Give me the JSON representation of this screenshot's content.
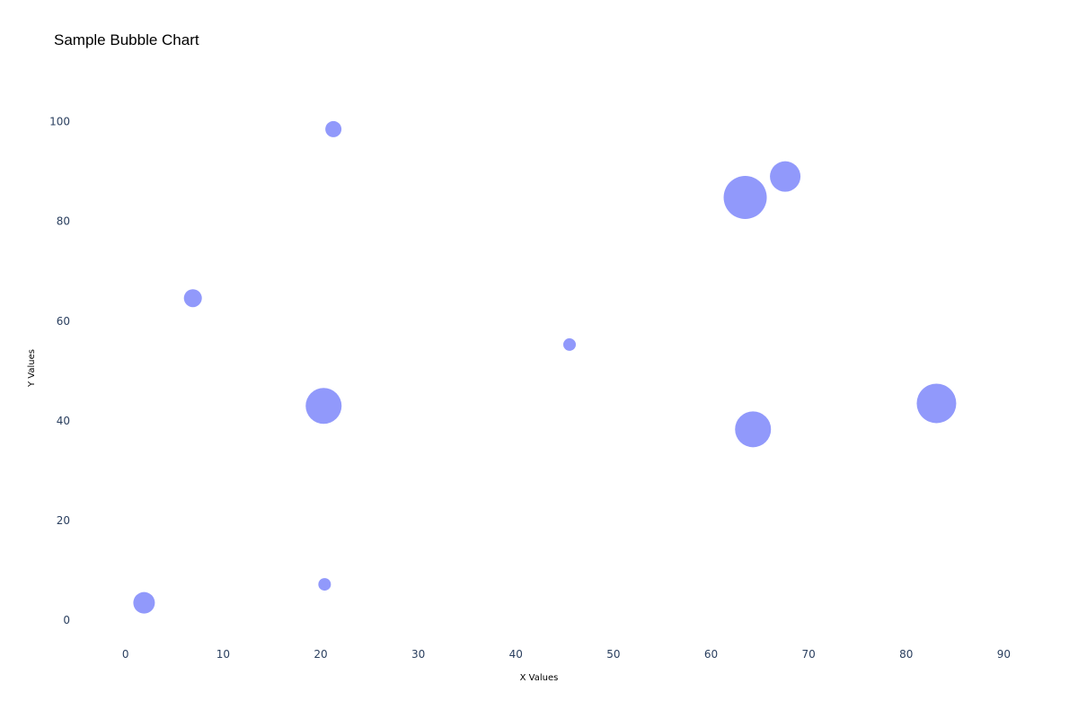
{
  "chart_data": {
    "type": "scatter",
    "subtype": "bubble",
    "title": "Sample Bubble Chart",
    "xlabel": "X Values",
    "ylabel": "Y Values",
    "xlim": [
      -5.5,
      93
    ],
    "ylim": [
      -7,
      110
    ],
    "x_ticks": [
      0,
      10,
      20,
      30,
      40,
      50,
      60,
      70,
      80,
      90
    ],
    "y_ticks": [
      0,
      20,
      40,
      60,
      80,
      100
    ],
    "grid": false,
    "legend": "none",
    "marker_color": "#636efa",
    "marker_opacity": 0.7,
    "series": [
      {
        "x": [
          21.3,
          63.5,
          67.6,
          6.9,
          45.5,
          20.3,
          83.1,
          64.3,
          1.9,
          20.4
        ],
        "y": [
          98.5,
          84.8,
          89.0,
          64.6,
          55.3,
          43.0,
          43.5,
          38.3,
          3.5,
          7.2
        ],
        "size": [
          9,
          24,
          17,
          10,
          7,
          20,
          22,
          20,
          12,
          7
        ]
      }
    ]
  }
}
